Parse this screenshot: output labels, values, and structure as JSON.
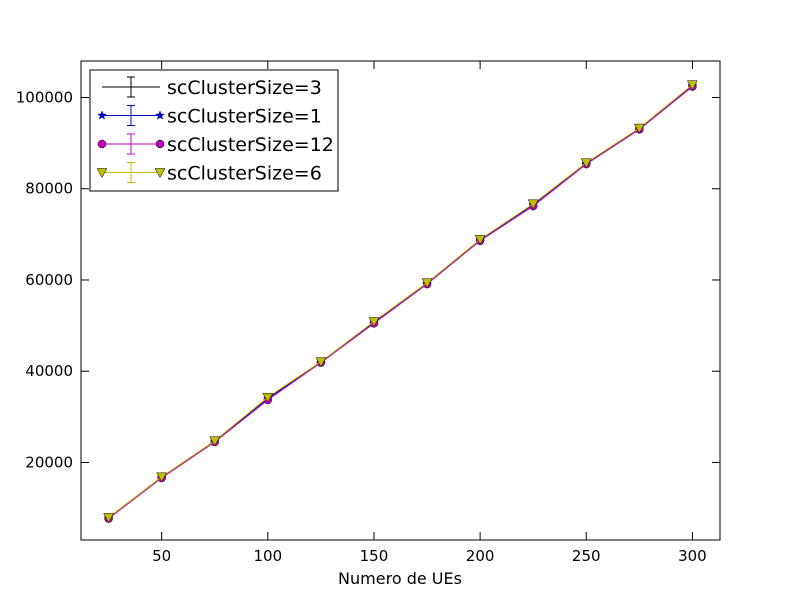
{
  "chart_data": {
    "type": "line",
    "title": "",
    "xlabel": "Numero de UEs",
    "ylabel": "",
    "xlim": [
      12,
      313
    ],
    "ylim": [
      3000,
      108000
    ],
    "x_ticks": [
      50,
      100,
      150,
      200,
      250,
      300
    ],
    "y_ticks": [
      20000,
      40000,
      60000,
      80000,
      100000
    ],
    "x_tick_labels": [
      "50",
      "100",
      "150",
      "200",
      "250",
      "300"
    ],
    "y_tick_labels": [
      "20000",
      "40000",
      "60000",
      "80000",
      "100000"
    ],
    "grid": false,
    "legend_position": "top-left",
    "x": [
      25,
      50,
      75,
      100,
      125,
      150,
      175,
      200,
      225,
      250,
      275,
      300
    ],
    "series": [
      {
        "name": "scClusterSize=3",
        "color": "#000000",
        "marker": "none",
        "values": [
          7900,
          16800,
          24700,
          34200,
          42000,
          50800,
          59300,
          68800,
          76600,
          85600,
          93200,
          102700
        ]
      },
      {
        "name": "scClusterSize=1",
        "color": "#0000cc",
        "marker": "star",
        "values": [
          7800,
          16700,
          24600,
          34000,
          41900,
          50700,
          59200,
          68700,
          76500,
          85500,
          93100,
          102600
        ]
      },
      {
        "name": "scClusterSize=12",
        "color": "#bf00bf",
        "marker": "circle",
        "values": [
          7700,
          16600,
          24500,
          33700,
          41900,
          50500,
          59100,
          68600,
          76200,
          85400,
          93000,
          102400
        ]
      },
      {
        "name": "scClusterSize=6",
        "color": "#bfbf00",
        "marker": "triangle-down",
        "values": [
          7950,
          16850,
          24750,
          34300,
          42100,
          50900,
          59400,
          68900,
          76700,
          85700,
          93300,
          102800
        ]
      }
    ]
  }
}
